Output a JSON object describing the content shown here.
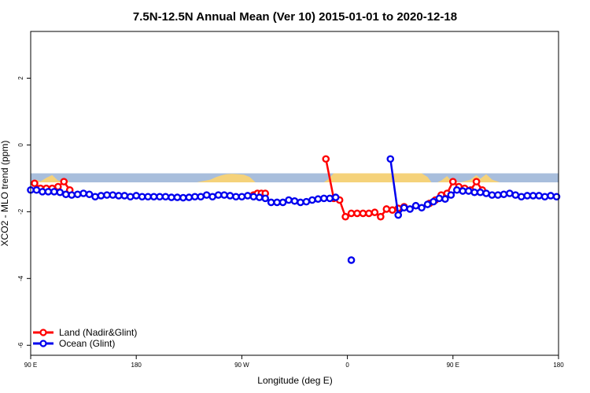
{
  "chart_data": {
    "type": "line",
    "title": "7.5N-12.5N Annual Mean (Ver 10)   2015-01-01 to 2020-12-18",
    "xlabel": "Longitude (deg E)",
    "ylabel": "XCO2 - MLO trend (ppm)",
    "xlim": [
      -90,
      180
    ],
    "ylim": [
      -6.3,
      3.4
    ],
    "xticks": [
      {
        "value": -90,
        "label": "90 E"
      },
      {
        "value": -36,
        "label": "180"
      },
      {
        "value": 18,
        "label": "90 W"
      },
      {
        "value": 72,
        "label": "0"
      },
      {
        "value": 126,
        "label": "90 E"
      },
      {
        "value": 180,
        "label": "180"
      }
    ],
    "yticks": [
      {
        "value": 2,
        "label": "2"
      },
      {
        "value": 0,
        "label": "0"
      },
      {
        "value": -2,
        "label": "-2"
      },
      {
        "value": -4,
        "label": "-4"
      },
      {
        "value": -6,
        "label": "-6"
      }
    ],
    "grid": false,
    "legend_position": "bottom-left",
    "colors": {
      "land": "#ff0000",
      "ocean": "#0000ee",
      "band": "#a8bedc",
      "land_fraction": "#f5d27a"
    },
    "land_fraction_band": {
      "y_range": [
        -1.12,
        -0.85
      ],
      "x": [
        -90,
        -87,
        -85,
        -82,
        -79,
        -76,
        -74,
        -72,
        -70,
        -60,
        -40,
        -20,
        -5,
        2,
        5,
        8,
        10,
        13,
        16,
        19,
        22,
        25,
        60,
        62,
        65,
        70,
        75,
        80,
        85,
        90,
        95,
        100,
        105,
        110,
        113,
        115,
        118,
        120,
        123,
        125,
        130,
        135,
        138,
        140,
        143,
        146,
        150,
        160,
        180
      ],
      "height": [
        0,
        0.3,
        0.1,
        0.5,
        0.8,
        0.2,
        0.1,
        0.3,
        0,
        0,
        0,
        0,
        0,
        0.3,
        0.6,
        0.8,
        0.9,
        0.95,
        0.9,
        0.85,
        0.6,
        0,
        0,
        0.3,
        1,
        1,
        1,
        1,
        1,
        1,
        1,
        1,
        1,
        1,
        0.6,
        0,
        0,
        0.2,
        0.7,
        0.2,
        0,
        0.3,
        0.8,
        0.4,
        0.9,
        0.3,
        0,
        0,
        0
      ]
    },
    "series": [
      {
        "name": "Land (Nadir&Glint)",
        "color": "#ff0000",
        "segments": [
          {
            "x": [
              -88,
              -85,
              -82,
              -79,
              -76,
              -73,
              -70
            ],
            "y": [
              -1.15,
              -1.3,
              -1.3,
              -1.3,
              -1.25,
              -1.1,
              -1.35
            ]
          },
          {
            "x": [
              24,
              26,
              28,
              30
            ],
            "y": [
              -1.5,
              -1.45,
              -1.45,
              -1.45
            ]
          },
          {
            "x": [
              61,
              65,
              68,
              71,
              74,
              77,
              80,
              83,
              86,
              89,
              92,
              95,
              98,
              101
            ],
            "y": [
              -0.42,
              -1.6,
              -1.65,
              -2.15,
              -2.05,
              -2.05,
              -2.05,
              -2.05,
              -2.02,
              -2.15,
              -1.92,
              -1.95,
              -1.9,
              -1.85
            ]
          },
          {
            "x": [
              114,
              117,
              120,
              123,
              126,
              129,
              132,
              135,
              138,
              141
            ],
            "y": [
              -1.75,
              -1.65,
              -1.5,
              -1.45,
              -1.1,
              -1.25,
              -1.3,
              -1.35,
              -1.1,
              -1.35
            ]
          }
        ]
      },
      {
        "name": "Ocean (Glint)",
        "color": "#0000ee",
        "segments": [
          {
            "x": [
              -90,
              -87,
              -84,
              -81,
              -78,
              -75,
              -72,
              -69,
              -66,
              -63,
              -60,
              -57,
              -54,
              -51,
              -48,
              -45,
              -42,
              -39,
              -36,
              -33,
              -30,
              -27,
              -24,
              -21,
              -18,
              -15,
              -12,
              -9,
              -6,
              -3,
              0,
              3,
              6,
              9,
              12,
              15,
              18,
              21,
              24,
              27,
              30,
              33,
              36,
              39,
              42,
              45,
              48,
              51,
              54,
              57,
              60,
              63,
              66
            ],
            "y": [
              -1.35,
              -1.35,
              -1.4,
              -1.4,
              -1.4,
              -1.42,
              -1.48,
              -1.5,
              -1.48,
              -1.45,
              -1.48,
              -1.55,
              -1.52,
              -1.5,
              -1.5,
              -1.52,
              -1.52,
              -1.55,
              -1.52,
              -1.55,
              -1.55,
              -1.55,
              -1.55,
              -1.55,
              -1.57,
              -1.57,
              -1.58,
              -1.57,
              -1.55,
              -1.55,
              -1.5,
              -1.55,
              -1.5,
              -1.5,
              -1.52,
              -1.55,
              -1.55,
              -1.52,
              -1.55,
              -1.57,
              -1.6,
              -1.72,
              -1.72,
              -1.72,
              -1.65,
              -1.68,
              -1.72,
              -1.7,
              -1.65,
              -1.62,
              -1.6,
              -1.6,
              -1.57
            ]
          },
          {
            "x": [
              94,
              98,
              101,
              104,
              107,
              110,
              113,
              116,
              119,
              122,
              125,
              128,
              131,
              134,
              137,
              140,
              143,
              146,
              149,
              152,
              155,
              158,
              161,
              164,
              167,
              170,
              173,
              176,
              179
            ],
            "y": [
              -0.42,
              -2.1,
              -1.88,
              -1.92,
              -1.82,
              -1.88,
              -1.78,
              -1.7,
              -1.6,
              -1.62,
              -1.5,
              -1.35,
              -1.38,
              -1.38,
              -1.42,
              -1.42,
              -1.45,
              -1.5,
              -1.5,
              -1.48,
              -1.45,
              -1.5,
              -1.55,
              -1.52,
              -1.52,
              -1.52,
              -1.55,
              -1.52,
              -1.55
            ]
          }
        ],
        "points": [
          {
            "x": 74,
            "y": -3.45
          }
        ]
      }
    ]
  }
}
